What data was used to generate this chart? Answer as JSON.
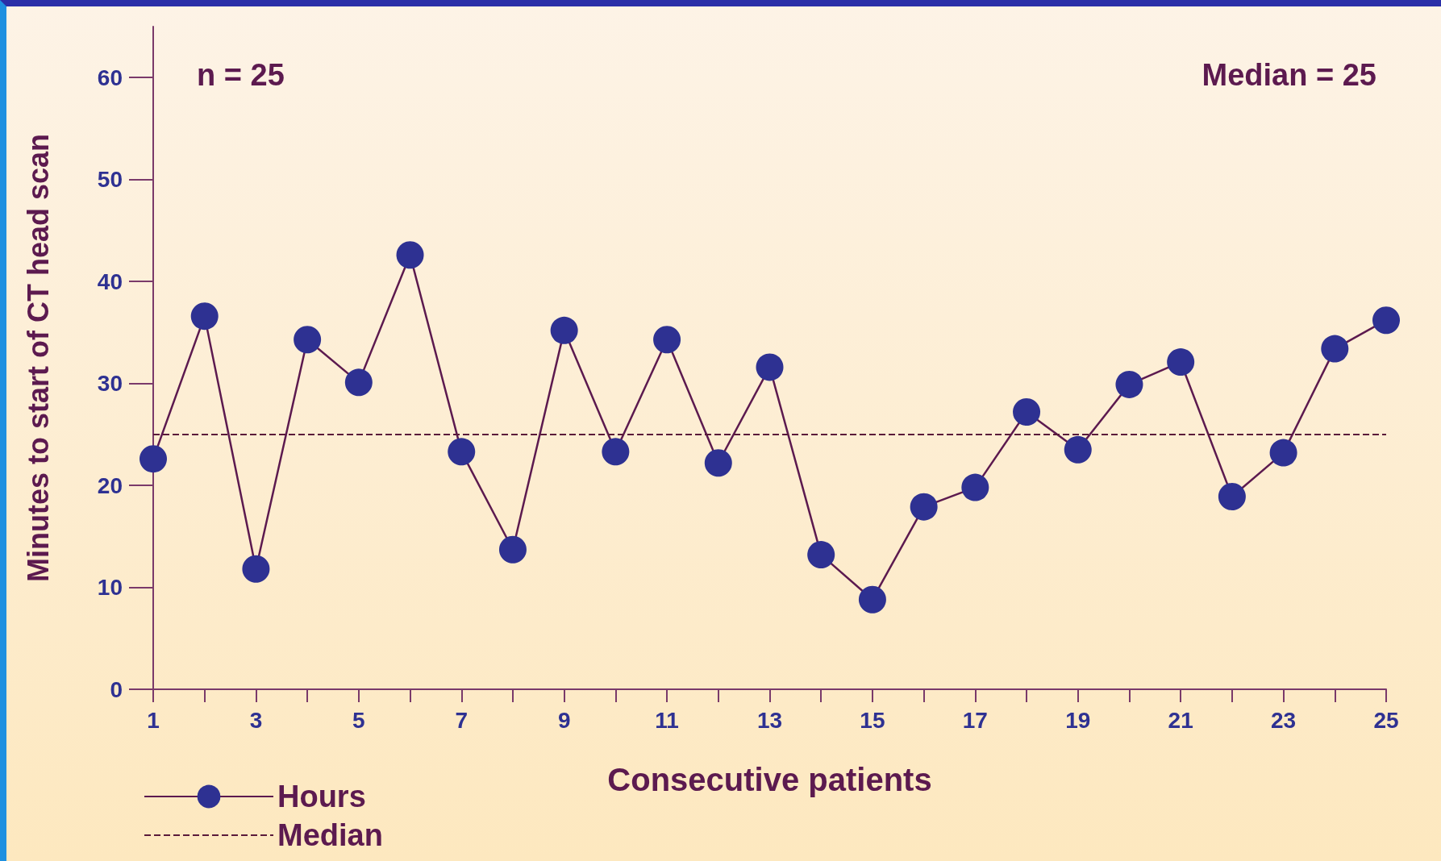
{
  "chart_data": {
    "type": "line",
    "xlabel": "Consecutive patients",
    "ylabel": "Minutes to start of CT head scan",
    "annotations": [
      "n = 25",
      "Median = 25"
    ],
    "x": [
      1,
      2,
      3,
      4,
      5,
      6,
      7,
      8,
      9,
      10,
      11,
      12,
      13,
      14,
      15,
      16,
      17,
      18,
      19,
      20,
      21,
      22,
      23,
      24,
      25
    ],
    "series": [
      {
        "name": "Hours",
        "color": "#2e3192",
        "values": [
          22.6,
          36.6,
          11.8,
          34.3,
          30.1,
          42.6,
          23.3,
          13.7,
          35.2,
          23.3,
          34.3,
          22.2,
          31.6,
          13.2,
          8.8,
          17.9,
          19.8,
          27.2,
          23.5,
          29.9,
          32.1,
          18.9,
          23.2,
          33.4,
          36.2
        ]
      }
    ],
    "ref_lines": [
      {
        "axis": "y",
        "value": 25,
        "label": "Median",
        "color": "#5a1a3a",
        "line_style": "dashed"
      }
    ],
    "xlim": [
      1,
      25
    ],
    "xticks": [
      1,
      {
        "value": 2,
        "label": null
      },
      3,
      {
        "value": 4,
        "label": null
      },
      5,
      {
        "value": 6,
        "label": null
      },
      7,
      {
        "value": 8,
        "label": null
      },
      9,
      {
        "value": 10,
        "label": null
      },
      11,
      {
        "value": 12,
        "label": null
      },
      13,
      {
        "value": 14,
        "label": null
      },
      15,
      {
        "value": 16,
        "label": null
      },
      17,
      {
        "value": 18,
        "label": null
      },
      19,
      {
        "value": 20,
        "label": null
      },
      21,
      {
        "value": 22,
        "label": null
      },
      23,
      {
        "value": 24,
        "label": null
      },
      25
    ],
    "ylim": [
      0,
      65
    ],
    "yticks": [
      0,
      10,
      20,
      30,
      40,
      50,
      60
    ],
    "grid": false,
    "legend": "bottom left",
    "marker": "circle",
    "line_style": "solid"
  }
}
